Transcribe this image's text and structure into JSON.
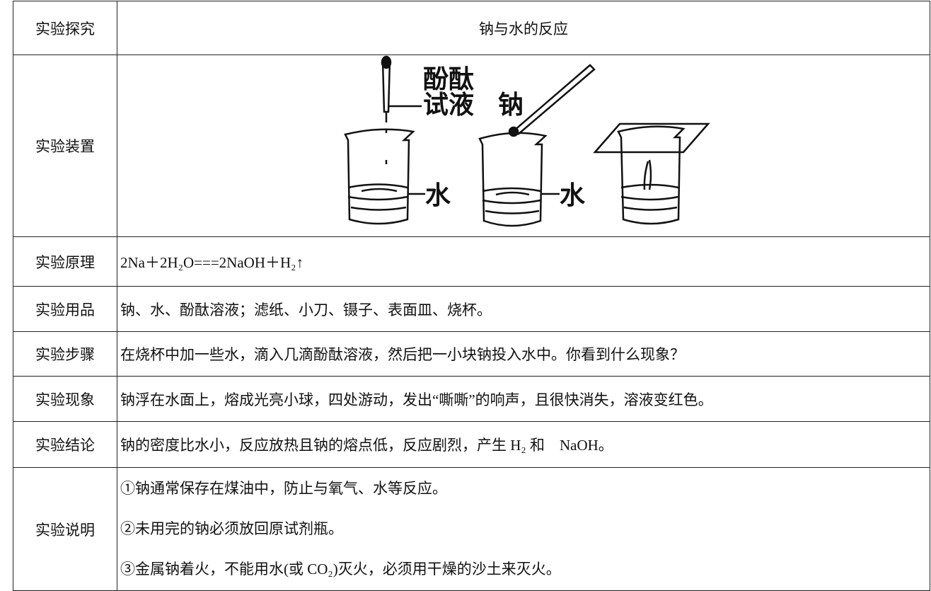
{
  "table": {
    "header": {
      "label": "实验探究",
      "title": "钠与水的反应"
    },
    "rows": [
      {
        "label": "实验装置",
        "figure": {
          "indicator": [
            "酚酞",
            "试液"
          ],
          "sodium": "钠",
          "water": [
            "水",
            "水"
          ]
        }
      },
      {
        "label": "实验原理",
        "text": "2Na＋2H₂O===2NaOH＋H₂↑"
      },
      {
        "label": "实验用品",
        "text": "钠、水、酚酞溶液；滤纸、小刀、镊子、表面皿、烧杯。"
      },
      {
        "label": "实验步骤",
        "text": "在烧杯中加一些水，滴入几滴酚酞溶液，然后把一小块钠投入水中。你看到什么现象？"
      },
      {
        "label": "实验现象",
        "text": "钠浮在水面上，熔成光亮小球，四处游动，发出“嘶嘶”的响声，且很快消失，溶液变红色。"
      },
      {
        "label": "实验结论",
        "text": "钠的密度比水小，反应放热且钠的熔点低，反应剧烈，产生 H₂ 和　NaOH。"
      },
      {
        "label": "实验说明",
        "notes": [
          "①钠通常保存在煤油中，防止与氧气、水等反应。",
          "②未用完的钠必须放回原试剂瓶。",
          "③金属钠着火，不能用水(或 CO₂)灭火，必须用干燥的沙土来灭火。"
        ]
      }
    ]
  }
}
